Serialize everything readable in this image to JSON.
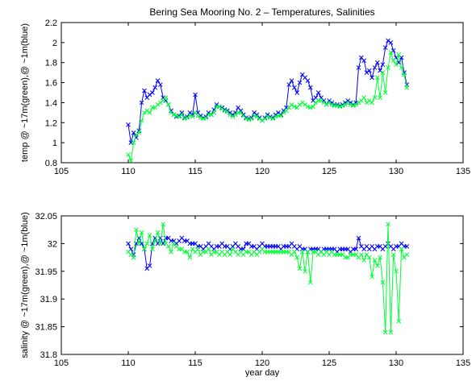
{
  "chart_data": [
    {
      "type": "line",
      "title": "Bering Sea Mooring No. 2 – Temperatures, Salinities",
      "xlabel": "",
      "ylabel": "temp @ ~17m(green),@ ~1m(blue)",
      "xlim": [
        105,
        135
      ],
      "ylim": [
        0.8,
        2.2
      ],
      "xticks": [
        "105",
        "110",
        "115",
        "120",
        "125",
        "130",
        "135"
      ],
      "yticks": [
        "0.8",
        "1",
        "1.2",
        "1.4",
        "1.6",
        "1.8",
        "2",
        "2.2"
      ],
      "grid": false,
      "marker": "x",
      "series": [
        {
          "color": "#0000ff",
          "x": [
            110.0,
            110.2,
            110.4,
            110.6,
            110.8,
            111.0,
            111.2,
            111.4,
            111.6,
            111.8,
            112.0,
            112.2,
            112.4,
            112.6,
            112.8,
            113.0,
            113.2,
            113.4,
            113.6,
            113.8,
            114.0,
            114.2,
            114.4,
            114.6,
            114.8,
            115.0,
            115.2,
            115.4,
            115.6,
            115.8,
            116.0,
            116.2,
            116.4,
            116.6,
            116.8,
            117.0,
            117.2,
            117.4,
            117.6,
            117.8,
            118.0,
            118.2,
            118.4,
            118.6,
            118.8,
            119.0,
            119.2,
            119.4,
            119.6,
            119.8,
            120.0,
            120.2,
            120.4,
            120.6,
            120.8,
            121.0,
            121.2,
            121.4,
            121.6,
            121.8,
            122.0,
            122.2,
            122.4,
            122.6,
            122.8,
            123.0,
            123.2,
            123.4,
            123.6,
            123.8,
            124.0,
            124.2,
            124.4,
            124.6,
            124.8,
            125.0,
            125.2,
            125.4,
            125.6,
            125.8,
            126.0,
            126.2,
            126.4,
            126.6,
            126.8,
            127.0,
            127.2,
            127.4,
            127.6,
            127.8,
            128.0,
            128.2,
            128.4,
            128.6,
            128.8,
            129.0,
            129.2,
            129.4,
            129.6,
            129.8,
            130.0,
            130.2,
            130.4,
            130.6,
            130.8
          ],
          "y": [
            1.18,
            1.0,
            1.1,
            1.05,
            1.12,
            1.4,
            1.52,
            1.45,
            1.48,
            1.5,
            1.55,
            1.62,
            1.58,
            1.45,
            1.42,
            1.38,
            1.32,
            1.28,
            1.26,
            1.27,
            1.3,
            1.25,
            1.26,
            1.3,
            1.28,
            1.48,
            1.3,
            1.27,
            1.25,
            1.26,
            1.3,
            1.28,
            1.33,
            1.38,
            1.36,
            1.35,
            1.33,
            1.32,
            1.3,
            1.28,
            1.3,
            1.35,
            1.32,
            1.28,
            1.25,
            1.24,
            1.25,
            1.3,
            1.28,
            1.25,
            1.22,
            1.25,
            1.28,
            1.26,
            1.25,
            1.28,
            1.3,
            1.28,
            1.32,
            1.35,
            1.58,
            1.62,
            1.55,
            1.5,
            1.6,
            1.68,
            1.65,
            1.62,
            1.55,
            1.42,
            1.45,
            1.5,
            1.45,
            1.42,
            1.38,
            1.42,
            1.4,
            1.38,
            1.38,
            1.37,
            1.38,
            1.4,
            1.42,
            1.4,
            1.38,
            1.4,
            1.75,
            1.85,
            1.82,
            1.7,
            1.72,
            1.65,
            1.75,
            1.8,
            1.72,
            1.78,
            1.95,
            2.02,
            2.0,
            1.92,
            1.85,
            1.8,
            1.85,
            1.7,
            1.58
          ]
        },
        {
          "color": "#00ff33",
          "x": [
            110.0,
            110.2,
            110.4,
            110.6,
            110.8,
            111.0,
            111.2,
            111.4,
            111.6,
            111.8,
            112.0,
            112.2,
            112.4,
            112.6,
            112.8,
            113.0,
            113.2,
            113.4,
            113.6,
            113.8,
            114.0,
            114.2,
            114.4,
            114.6,
            114.8,
            115.0,
            115.2,
            115.4,
            115.6,
            115.8,
            116.0,
            116.2,
            116.4,
            116.6,
            116.8,
            117.0,
            117.2,
            117.4,
            117.6,
            117.8,
            118.0,
            118.2,
            118.4,
            118.6,
            118.8,
            119.0,
            119.2,
            119.4,
            119.6,
            119.8,
            120.0,
            120.2,
            120.4,
            120.6,
            120.8,
            121.0,
            121.2,
            121.4,
            121.6,
            121.8,
            122.0,
            122.2,
            122.4,
            122.6,
            122.8,
            123.0,
            123.2,
            123.4,
            123.6,
            123.8,
            124.0,
            124.2,
            124.4,
            124.6,
            124.8,
            125.0,
            125.2,
            125.4,
            125.6,
            125.8,
            126.0,
            126.2,
            126.4,
            126.6,
            126.8,
            127.0,
            127.2,
            127.4,
            127.6,
            127.8,
            128.0,
            128.2,
            128.4,
            128.6,
            128.8,
            129.0,
            129.2,
            129.4,
            129.6,
            129.8,
            130.0,
            130.2,
            130.4,
            130.6,
            130.8
          ],
          "y": [
            0.88,
            0.82,
            1.0,
            1.08,
            1.1,
            1.22,
            1.3,
            1.32,
            1.3,
            1.35,
            1.35,
            1.38,
            1.4,
            1.42,
            1.45,
            1.38,
            1.3,
            1.28,
            1.27,
            1.26,
            1.28,
            1.24,
            1.25,
            1.27,
            1.26,
            1.3,
            1.27,
            1.25,
            1.24,
            1.25,
            1.28,
            1.28,
            1.3,
            1.36,
            1.36,
            1.34,
            1.32,
            1.31,
            1.28,
            1.26,
            1.28,
            1.3,
            1.3,
            1.27,
            1.24,
            1.23,
            1.24,
            1.27,
            1.26,
            1.24,
            1.22,
            1.24,
            1.26,
            1.25,
            1.24,
            1.26,
            1.27,
            1.27,
            1.3,
            1.32,
            1.35,
            1.38,
            1.36,
            1.35,
            1.38,
            1.4,
            1.38,
            1.36,
            1.35,
            1.36,
            1.4,
            1.42,
            1.42,
            1.4,
            1.38,
            1.4,
            1.38,
            1.37,
            1.37,
            1.36,
            1.37,
            1.38,
            1.4,
            1.38,
            1.37,
            1.38,
            1.4,
            1.42,
            1.45,
            1.4,
            1.42,
            1.4,
            1.45,
            1.65,
            1.45,
            1.7,
            1.5,
            1.75,
            1.9,
            1.82,
            1.78,
            1.88,
            1.75,
            1.68,
            1.55
          ]
        }
      ]
    },
    {
      "type": "line",
      "title": "",
      "xlabel": "year day",
      "ylabel": "salinity @ ~17m(green),@ ~1m(blue)",
      "xlim": [
        105,
        135
      ],
      "ylim": [
        31.8,
        32.05
      ],
      "xticks": [
        "105",
        "110",
        "115",
        "120",
        "125",
        "130",
        "135"
      ],
      "yticks": [
        "31.8",
        "31.85",
        "31.9",
        "31.95",
        "32",
        "32.05"
      ],
      "grid": false,
      "marker": "x",
      "series": [
        {
          "color": "#0000ff",
          "x": [
            110.0,
            110.2,
            110.4,
            110.6,
            110.8,
            111.0,
            111.2,
            111.4,
            111.6,
            111.8,
            112.0,
            112.2,
            112.4,
            112.6,
            112.8,
            113.0,
            113.2,
            113.4,
            113.6,
            113.8,
            114.0,
            114.2,
            114.4,
            114.6,
            114.8,
            115.0,
            115.2,
            115.4,
            115.6,
            115.8,
            116.0,
            116.2,
            116.4,
            116.6,
            116.8,
            117.0,
            117.2,
            117.4,
            117.6,
            117.8,
            118.0,
            118.2,
            118.4,
            118.6,
            118.8,
            119.0,
            119.2,
            119.4,
            119.6,
            119.8,
            120.0,
            120.2,
            120.4,
            120.6,
            120.8,
            121.0,
            121.2,
            121.4,
            121.6,
            121.8,
            122.0,
            122.2,
            122.4,
            122.6,
            122.8,
            123.0,
            123.2,
            123.4,
            123.6,
            123.8,
            124.0,
            124.2,
            124.4,
            124.6,
            124.8,
            125.0,
            125.2,
            125.4,
            125.6,
            125.8,
            126.0,
            126.2,
            126.4,
            126.6,
            126.8,
            127.0,
            127.2,
            127.4,
            127.6,
            127.8,
            128.0,
            128.2,
            128.4,
            128.6,
            128.8,
            129.0,
            129.2,
            129.4,
            129.6,
            129.8,
            130.0,
            130.2,
            130.4,
            130.6,
            130.8
          ],
          "y": [
            32.0,
            31.99,
            31.98,
            32.0,
            32.01,
            32.0,
            31.99,
            31.955,
            31.96,
            32.0,
            32.01,
            32.0,
            32.01,
            32.0,
            32.01,
            32.01,
            32.005,
            32.005,
            32.0,
            32.005,
            32.01,
            32.005,
            32.005,
            32.0,
            32.0,
            32.0,
            31.995,
            31.995,
            31.99,
            31.995,
            32.0,
            31.995,
            31.99,
            31.995,
            31.995,
            32.0,
            31.995,
            31.995,
            31.99,
            31.995,
            32.0,
            31.995,
            31.99,
            31.99,
            32.0,
            32.0,
            31.995,
            31.995,
            31.99,
            31.995,
            32.0,
            31.995,
            31.995,
            31.995,
            31.995,
            31.995,
            31.995,
            31.99,
            31.995,
            31.995,
            31.995,
            32.0,
            31.995,
            31.99,
            31.995,
            31.99,
            31.99,
            31.985,
            31.99,
            31.99,
            31.99,
            31.99,
            31.985,
            31.99,
            31.99,
            31.99,
            31.99,
            31.99,
            31.985,
            31.99,
            31.99,
            31.99,
            31.99,
            31.985,
            31.99,
            31.99,
            32.01,
            31.995,
            31.99,
            31.995,
            31.99,
            31.995,
            31.99,
            31.995,
            31.995,
            31.99,
            31.995,
            32.0,
            31.995,
            31.99,
            31.995,
            31.995,
            32.0,
            31.995,
            31.995
          ]
        },
        {
          "color": "#00ff33",
          "x": [
            110.0,
            110.2,
            110.4,
            110.6,
            110.8,
            111.0,
            111.2,
            111.4,
            111.6,
            111.8,
            112.0,
            112.2,
            112.4,
            112.6,
            112.8,
            113.0,
            113.2,
            113.4,
            113.6,
            113.8,
            114.0,
            114.2,
            114.4,
            114.6,
            114.8,
            115.0,
            115.2,
            115.4,
            115.6,
            115.8,
            116.0,
            116.2,
            116.4,
            116.6,
            116.8,
            117.0,
            117.2,
            117.4,
            117.6,
            117.8,
            118.0,
            118.2,
            118.4,
            118.6,
            118.8,
            119.0,
            119.2,
            119.4,
            119.6,
            119.8,
            120.0,
            120.2,
            120.4,
            120.6,
            120.8,
            121.0,
            121.2,
            121.4,
            121.6,
            121.8,
            122.0,
            122.2,
            122.4,
            122.6,
            122.8,
            123.0,
            123.2,
            123.4,
            123.6,
            123.8,
            124.0,
            124.2,
            124.4,
            124.6,
            124.8,
            125.0,
            125.2,
            125.4,
            125.6,
            125.8,
            126.0,
            126.2,
            126.4,
            126.6,
            126.8,
            127.0,
            127.2,
            127.4,
            127.6,
            127.8,
            128.0,
            128.2,
            128.4,
            128.6,
            128.8,
            129.0,
            129.2,
            129.4,
            129.6,
            129.8,
            130.0,
            130.2,
            130.4,
            130.6,
            130.8
          ],
          "y": [
            31.985,
            31.98,
            31.975,
            32.025,
            32.0,
            32.02,
            31.99,
            32.0,
            32.015,
            31.99,
            32.005,
            32.02,
            32.0,
            32.035,
            32.0,
            31.995,
            31.985,
            32.0,
            31.995,
            31.99,
            31.99,
            31.985,
            31.985,
            31.975,
            31.99,
            31.985,
            31.99,
            31.98,
            31.985,
            31.985,
            31.99,
            31.98,
            31.985,
            31.985,
            31.98,
            31.985,
            31.98,
            31.985,
            31.98,
            31.99,
            31.985,
            31.98,
            31.985,
            31.98,
            31.985,
            31.985,
            31.98,
            31.985,
            31.98,
            31.985,
            31.99,
            31.985,
            31.985,
            31.985,
            31.985,
            31.985,
            31.985,
            31.985,
            31.985,
            31.985,
            31.985,
            31.98,
            31.985,
            31.975,
            31.955,
            31.985,
            31.95,
            31.985,
            31.93,
            31.985,
            31.985,
            31.98,
            31.985,
            31.98,
            31.985,
            31.98,
            31.985,
            31.98,
            31.98,
            31.98,
            31.98,
            31.975,
            31.975,
            31.98,
            31.98,
            31.98,
            31.975,
            31.98,
            31.97,
            31.98,
            31.975,
            31.94,
            31.97,
            31.96,
            31.975,
            31.93,
            31.84,
            32.035,
            31.84,
            31.98,
            31.95,
            31.86,
            31.99,
            31.975,
            31.98
          ]
        }
      ]
    }
  ]
}
